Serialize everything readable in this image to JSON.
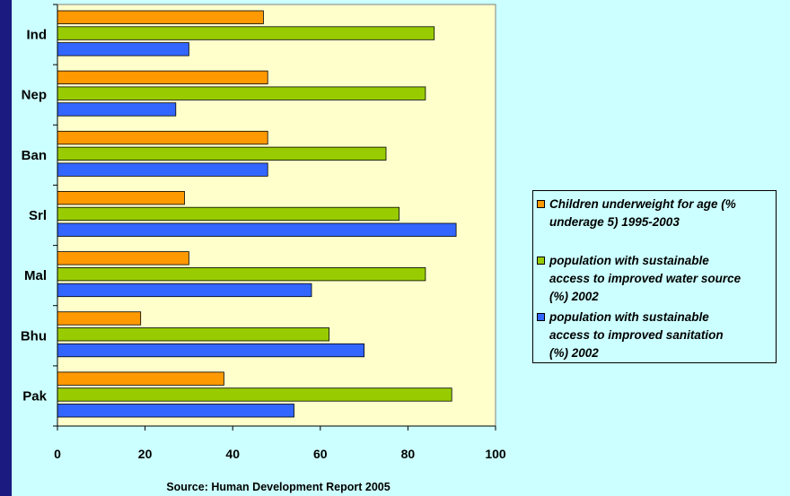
{
  "colors": {
    "background": "#CCFFFF",
    "plot_area": "#FFFFCC",
    "frame": "#1a1a80",
    "underweight": "#FF9900",
    "water": "#99CC00",
    "sanitation": "#3366FF"
  },
  "source_note": "Source: Human Development Report 2005",
  "chart_data": {
    "type": "bar",
    "orientation": "horizontal",
    "categories": [
      "Ind",
      "Nep",
      "Ban",
      "Srl",
      "Mal",
      "Bhu",
      "Pak"
    ],
    "series": [
      {
        "name": "Children underweight for age (% underage 5) 1995-2003",
        "color": "#FF9900",
        "values": [
          47,
          48,
          48,
          29,
          30,
          19,
          38
        ]
      },
      {
        "name": "population with sustainable access to improved water source (%) 2002",
        "color": "#99CC00",
        "values": [
          86,
          84,
          75,
          78,
          84,
          62,
          90
        ]
      },
      {
        "name": "population with sustainable access to improved sanitation (%) 2002",
        "color": "#3366FF",
        "values": [
          30,
          27,
          48,
          91,
          58,
          70,
          54
        ]
      }
    ],
    "xlim": [
      0,
      100
    ],
    "xticks": [
      "0",
      "20",
      "40",
      "60",
      "80",
      "100"
    ],
    "xlabel": "",
    "ylabel": "",
    "grid": false,
    "legend_position": "right"
  }
}
